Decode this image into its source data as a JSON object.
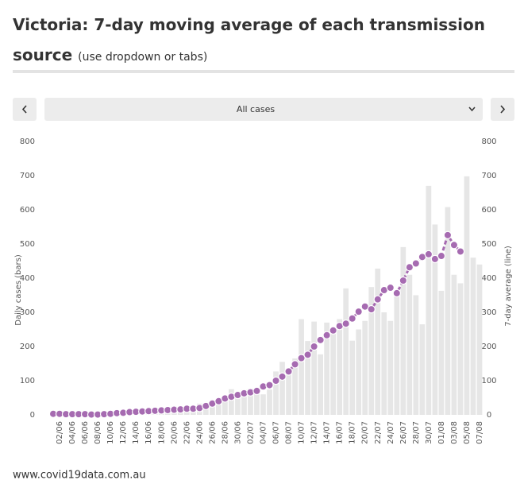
{
  "header": {
    "title": "Victoria: 7-day moving average of each transmission source",
    "subtitle": "(use dropdown or tabs)"
  },
  "controls": {
    "dropdown": "All cases"
  },
  "footer": "www.covid19data.com.au",
  "chart_data": {
    "type": "bar_line",
    "y_label": "Daily cases (bars)",
    "y2_label": "7-day average (line)",
    "categories": [
      null,
      "02/06",
      null,
      "04/06",
      null,
      "06/06",
      null,
      "08/06",
      null,
      "10/06",
      null,
      "12/06",
      null,
      "14/06",
      null,
      "16/06",
      null,
      "18/06",
      null,
      "20/06",
      null,
      "22/06",
      null,
      "24/06",
      null,
      "26/06",
      null,
      "28/06",
      null,
      "30/06",
      null,
      "02/07",
      null,
      "04/07",
      null,
      "06/07",
      null,
      "08/07",
      null,
      "10/07",
      null,
      "12/07",
      null,
      "14/07",
      null,
      "16/07",
      null,
      "18/07",
      null,
      "20/07",
      null,
      "22/07",
      null,
      "24/07",
      null,
      "26/07",
      null,
      "28/07",
      null,
      "30/07",
      null,
      "01/08",
      null,
      "03/08",
      null,
      "05/08",
      null,
      "07/08"
    ],
    "series": [
      {
        "name": "Daily cases",
        "color": "#e6e6e6",
        "axis": "y",
        "values": [
          4,
          5,
          3,
          4,
          6,
          4,
          6,
          5,
          6,
          9,
          12,
          10,
          9,
          9,
          11,
          14,
          19,
          13,
          17,
          25,
          16,
          15,
          20,
          33,
          20,
          30,
          41,
          49,
          75,
          64,
          73,
          77,
          66,
          60,
          74,
          127,
          155,
          134,
          165,
          280,
          216,
          273,
          177,
          270,
          238,
          280,
          370,
          217,
          250,
          275,
          374,
          428,
          300,
          275,
          357,
          491,
          410,
          350,
          265,
          670,
          557,
          363,
          608,
          410,
          385,
          698,
          460,
          440
        ]
      },
      {
        "name": "7-day average",
        "color": "#a66bb1",
        "axis": "y2",
        "values": [
          3,
          3,
          2,
          2,
          2,
          2,
          1,
          1,
          2,
          3,
          5,
          6,
          8,
          9,
          10,
          11,
          12,
          13,
          14,
          15,
          16,
          18,
          18,
          20,
          26,
          33,
          40,
          48,
          53,
          58,
          63,
          66,
          70,
          83,
          87,
          100,
          112,
          127,
          148,
          166,
          176,
          200,
          219,
          233,
          247,
          260,
          267,
          282,
          302,
          317,
          309,
          338,
          365,
          372,
          356,
          393,
          432,
          443,
          462,
          470,
          456,
          465,
          526,
          497,
          478,
          null,
          null,
          null
        ]
      }
    ],
    "ylim": [
      0,
      800
    ],
    "yticks": [
      0,
      100,
      200,
      300,
      400,
      500,
      600,
      700,
      800
    ],
    "y2lim": [
      0,
      800
    ],
    "y2ticks": [
      0,
      100,
      200,
      300,
      400,
      500,
      600,
      700,
      800
    ]
  }
}
